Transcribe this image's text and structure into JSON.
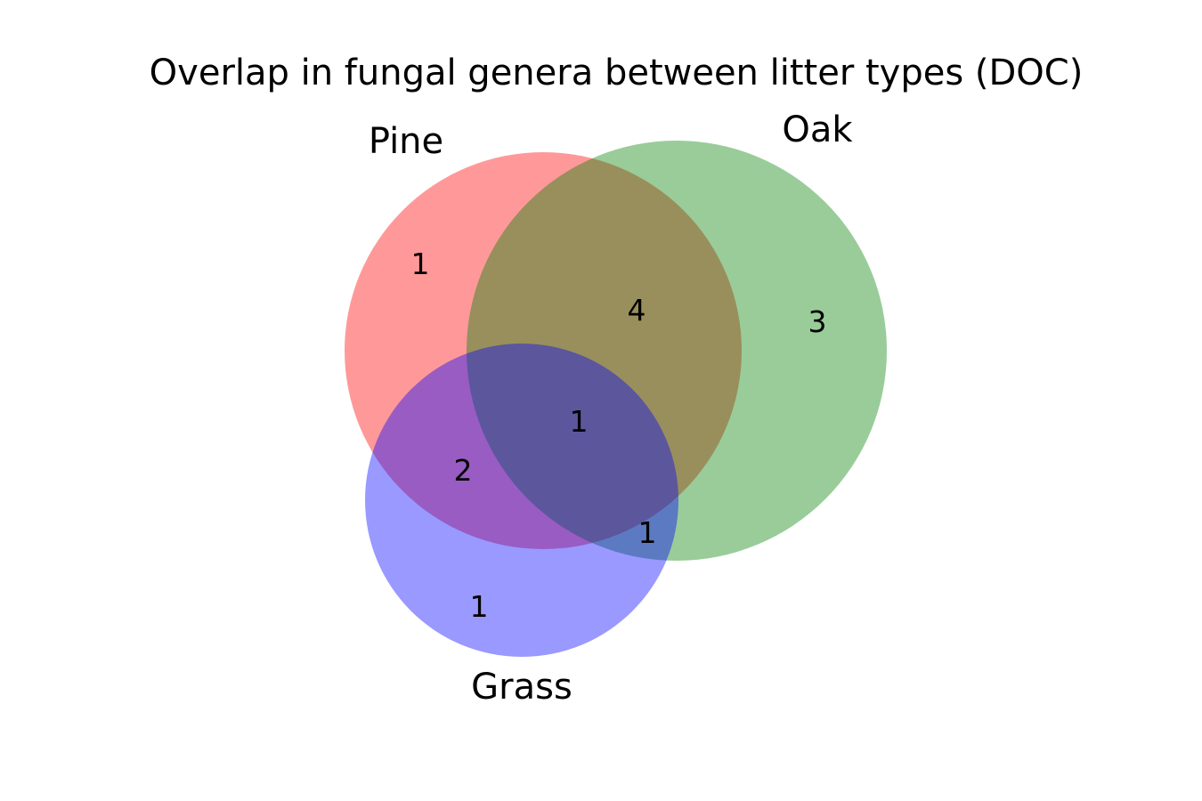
{
  "chart_data": {
    "type": "venn3",
    "title": "Overlap in fungal genera between litter types (DOC)",
    "sets": [
      {
        "key": "pine",
        "label": "Pine",
        "color": "#ff0000"
      },
      {
        "key": "oak",
        "label": "Oak",
        "color": "#008000"
      },
      {
        "key": "grass",
        "label": "Grass",
        "color": "#0000ff"
      }
    ],
    "regions": {
      "pine_only": "1",
      "oak_only": "3",
      "grass_only": "1",
      "pine_oak": "4",
      "pine_grass": "2",
      "oak_grass": "1",
      "pine_oak_grass": "1"
    }
  }
}
